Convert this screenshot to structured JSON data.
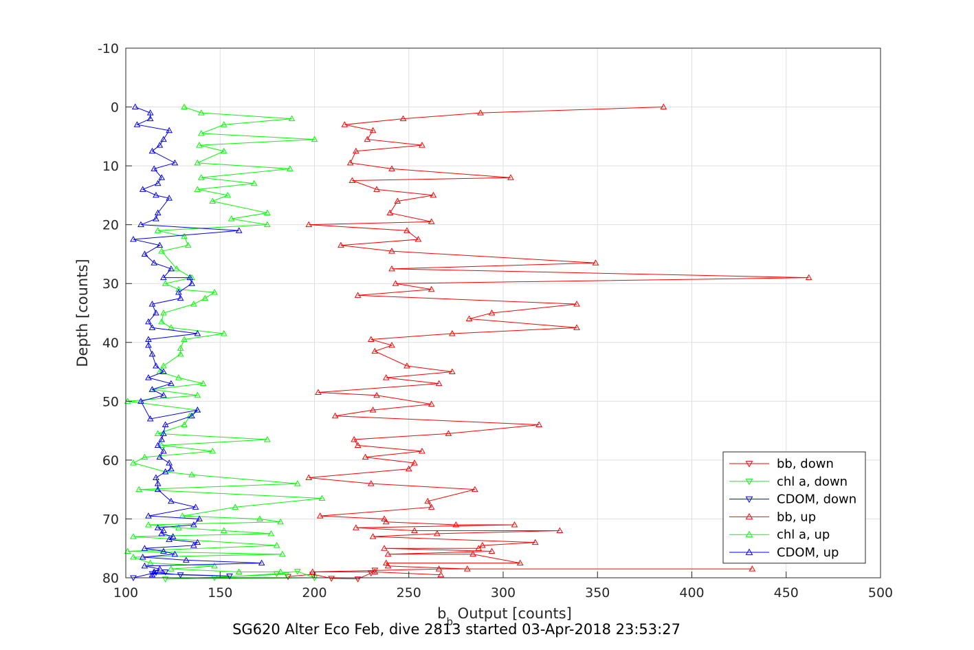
{
  "caption": "SG620 Alter Eco Feb, dive 2813 started 03-Apr-2018 23:53:27",
  "chart_data": {
    "type": "line",
    "xlabel": "b",
    "xlabel_subscript": "b",
    "xlabel_rest": " Output [counts]",
    "ylabel": "Depth [counts]",
    "xlim": [
      100,
      500
    ],
    "ylim": [
      -10,
      80
    ],
    "y_reversed": true,
    "grid": true,
    "legend_position": "bottom-right",
    "x_ticks": [
      100,
      150,
      200,
      250,
      300,
      350,
      400,
      450,
      500
    ],
    "y_ticks": [
      -10,
      0,
      10,
      20,
      30,
      40,
      50,
      60,
      70,
      80
    ],
    "series": [
      {
        "name": "bb, down",
        "color": "#ff0000",
        "marker": "triangle-down",
        "points": [
          [
            186,
            79.8
          ],
          [
            199,
            79.4
          ],
          [
            209,
            80.1
          ],
          [
            223,
            80.2
          ],
          [
            230,
            79.2
          ],
          [
            232,
            78.7
          ]
        ]
      },
      {
        "name": "chl a, down",
        "color": "#00ff00",
        "marker": "triangle-down",
        "points": [
          [
            147,
            80.0
          ],
          [
            180,
            79.3
          ],
          [
            191,
            78.9
          ],
          [
            200,
            80.0
          ],
          [
            121,
            80.2
          ],
          [
            185,
            79.4
          ]
        ]
      },
      {
        "name": "CDOM, down",
        "color": "#0000ff",
        "marker": "triangle-down",
        "points": [
          [
            104,
            80.0
          ],
          [
            116,
            79.1
          ],
          [
            129,
            79.5
          ],
          [
            155,
            79.7
          ],
          [
            114,
            79.3
          ],
          [
            121,
            79.0
          ]
        ]
      },
      {
        "name": "bb, up",
        "color": "#ff0000",
        "marker": "triangle-up",
        "points": [
          [
            385,
            0
          ],
          [
            288,
            1
          ],
          [
            247,
            2
          ],
          [
            216,
            3
          ],
          [
            231,
            4
          ],
          [
            228,
            5.5
          ],
          [
            257,
            6.5
          ],
          [
            222,
            7.5
          ],
          [
            219,
            9.5
          ],
          [
            241,
            10.5
          ],
          [
            304,
            12
          ],
          [
            220,
            12.5
          ],
          [
            233,
            14
          ],
          [
            263,
            15
          ],
          [
            244,
            16
          ],
          [
            240,
            18
          ],
          [
            262,
            19.5
          ],
          [
            197,
            20
          ],
          [
            249,
            21
          ],
          [
            255,
            22.5
          ],
          [
            214,
            23.5
          ],
          [
            241,
            24.5
          ],
          [
            349,
            26.5
          ],
          [
            241,
            27.5
          ],
          [
            462,
            29
          ],
          [
            243,
            30
          ],
          [
            262,
            31
          ],
          [
            223,
            32
          ],
          [
            339,
            33.5
          ],
          [
            294,
            35
          ],
          [
            282,
            36
          ],
          [
            339,
            37.5
          ],
          [
            273,
            38.5
          ],
          [
            230,
            39.5
          ],
          [
            241,
            40.5
          ],
          [
            232,
            41.5
          ],
          [
            249,
            44
          ],
          [
            273,
            45
          ],
          [
            238,
            46
          ],
          [
            266,
            47
          ],
          [
            202,
            48.5
          ],
          [
            233,
            49
          ],
          [
            262,
            50.5
          ],
          [
            231,
            51.5
          ],
          [
            211,
            52.5
          ],
          [
            319,
            54
          ],
          [
            271,
            55.5
          ],
          [
            221,
            56.5
          ],
          [
            223,
            57.5
          ],
          [
            257,
            58.5
          ],
          [
            227,
            59.5
          ],
          [
            253,
            60.5
          ],
          [
            250,
            61.5
          ],
          [
            197,
            63
          ],
          [
            230,
            64
          ],
          [
            285,
            65
          ],
          [
            260,
            67
          ],
          [
            262,
            68
          ],
          [
            203,
            69.5
          ],
          [
            237,
            70
          ],
          [
            238,
            70.5
          ],
          [
            275,
            71
          ],
          [
            306,
            71
          ],
          [
            222,
            71.5
          ],
          [
            253,
            72
          ],
          [
            330,
            72
          ],
          [
            265,
            72.5
          ],
          [
            231,
            73
          ],
          [
            317,
            74
          ],
          [
            289,
            74.5
          ],
          [
            287,
            75
          ],
          [
            237,
            75
          ],
          [
            294,
            75.5
          ],
          [
            239,
            76
          ],
          [
            284,
            76
          ],
          [
            309,
            77.5
          ],
          [
            238,
            77.5
          ],
          [
            239,
            78
          ],
          [
            281,
            78.5
          ],
          [
            432,
            78.5
          ],
          [
            266,
            78.5
          ],
          [
            199,
            79
          ],
          [
            232,
            79
          ],
          [
            267,
            79.5
          ]
        ]
      },
      {
        "name": "chl a, up",
        "color": "#00ff00",
        "marker": "triangle-up",
        "points": [
          [
            131,
            0
          ],
          [
            140,
            1
          ],
          [
            188,
            2
          ],
          [
            152,
            3
          ],
          [
            140,
            4.5
          ],
          [
            200,
            5.5
          ],
          [
            139,
            6.5
          ],
          [
            152,
            7.5
          ],
          [
            138,
            9.5
          ],
          [
            187,
            10.5
          ],
          [
            140,
            12
          ],
          [
            168,
            13
          ],
          [
            138,
            14
          ],
          [
            154,
            15
          ],
          [
            146,
            16
          ],
          [
            175,
            18
          ],
          [
            156,
            19
          ],
          [
            175,
            20
          ],
          [
            117,
            21
          ],
          [
            131,
            22
          ],
          [
            133,
            23.5
          ],
          [
            119,
            24.5
          ],
          [
            127,
            27.5
          ],
          [
            135,
            29
          ],
          [
            121,
            30
          ],
          [
            128,
            31
          ],
          [
            147,
            31.5
          ],
          [
            142,
            32.5
          ],
          [
            136,
            33.5
          ],
          [
            120,
            35
          ],
          [
            119,
            36.5
          ],
          [
            124,
            37.5
          ],
          [
            152,
            38.5
          ],
          [
            131,
            39.5
          ],
          [
            129,
            41
          ],
          [
            129,
            42
          ],
          [
            120,
            44
          ],
          [
            118,
            45
          ],
          [
            128,
            46
          ],
          [
            141,
            47
          ],
          [
            114,
            48
          ],
          [
            138,
            49
          ],
          [
            101,
            50
          ],
          [
            138,
            51.5
          ],
          [
            134,
            52.5
          ],
          [
            131,
            54
          ],
          [
            117,
            55.5
          ],
          [
            175,
            56.5
          ],
          [
            119,
            57.5
          ],
          [
            146,
            58.5
          ],
          [
            110,
            59.5
          ],
          [
            104,
            60.5
          ],
          [
            121,
            62
          ],
          [
            135,
            62.5
          ],
          [
            191,
            64
          ],
          [
            107,
            65
          ],
          [
            204,
            66.5
          ],
          [
            158,
            68
          ],
          [
            130,
            69.5
          ],
          [
            171,
            70
          ],
          [
            182,
            70.5
          ],
          [
            112,
            71
          ],
          [
            128,
            71.5
          ],
          [
            152,
            72
          ],
          [
            177,
            72.5
          ],
          [
            104,
            73
          ],
          [
            180,
            74.5
          ],
          [
            101,
            75.5
          ],
          [
            183,
            76
          ],
          [
            104,
            76.5
          ],
          [
            113,
            77.5
          ],
          [
            147,
            78
          ],
          [
            124,
            78.5
          ],
          [
            160,
            79
          ],
          [
            182,
            79
          ]
        ]
      },
      {
        "name": "CDOM, up",
        "color": "#0000ff",
        "marker": "triangle-up",
        "points": [
          [
            105,
            0
          ],
          [
            113,
            1
          ],
          [
            113,
            2
          ],
          [
            106,
            3
          ],
          [
            123,
            4
          ],
          [
            120,
            5.5
          ],
          [
            118,
            6.5
          ],
          [
            114,
            7.5
          ],
          [
            126,
            9.5
          ],
          [
            115,
            10.5
          ],
          [
            119,
            12
          ],
          [
            117,
            13
          ],
          [
            109,
            14
          ],
          [
            116,
            15
          ],
          [
            123,
            15.5
          ],
          [
            117,
            18
          ],
          [
            116,
            19
          ],
          [
            108,
            20
          ],
          [
            160,
            21
          ],
          [
            104,
            22.5
          ],
          [
            118,
            23.5
          ],
          [
            110,
            25
          ],
          [
            115,
            26.5
          ],
          [
            124,
            27.5
          ],
          [
            120,
            29
          ],
          [
            134,
            29
          ],
          [
            135,
            30
          ],
          [
            128,
            31.5
          ],
          [
            129,
            32.5
          ],
          [
            114,
            33.5
          ],
          [
            116,
            35
          ],
          [
            112,
            36.5
          ],
          [
            114,
            37.5
          ],
          [
            138,
            38.5
          ],
          [
            112,
            39.5
          ],
          [
            112,
            40.5
          ],
          [
            114,
            42
          ],
          [
            116,
            44
          ],
          [
            120,
            45
          ],
          [
            112,
            46
          ],
          [
            124,
            47
          ],
          [
            114,
            48
          ],
          [
            120,
            49
          ],
          [
            108,
            50
          ],
          [
            113,
            53
          ],
          [
            138,
            51.5
          ],
          [
            135,
            52.5
          ],
          [
            121,
            54
          ],
          [
            120,
            55.5
          ],
          [
            119,
            56.5
          ],
          [
            117,
            57.5
          ],
          [
            120,
            58.5
          ],
          [
            118,
            59.5
          ],
          [
            123,
            60.5
          ],
          [
            124,
            61.5
          ],
          [
            121,
            62
          ],
          [
            116,
            63
          ],
          [
            117,
            64
          ],
          [
            117,
            65
          ],
          [
            124,
            67
          ],
          [
            137,
            68
          ],
          [
            112,
            69.5
          ],
          [
            139,
            70
          ],
          [
            136,
            71
          ],
          [
            117,
            71.5
          ],
          [
            120,
            72
          ],
          [
            119,
            72.5
          ],
          [
            125,
            73
          ],
          [
            123,
            73.5
          ],
          [
            138,
            74
          ],
          [
            136,
            74.5
          ],
          [
            110,
            75
          ],
          [
            120,
            75.5
          ],
          [
            126,
            76
          ],
          [
            109,
            76.5
          ],
          [
            132,
            77
          ],
          [
            172,
            77.5
          ],
          [
            110,
            78
          ],
          [
            118,
            78.5
          ],
          [
            115,
            79
          ],
          [
            114,
            79.5
          ]
        ]
      }
    ]
  }
}
